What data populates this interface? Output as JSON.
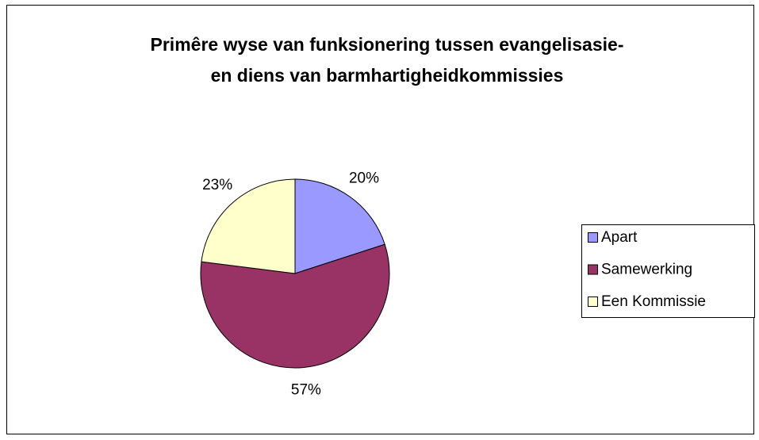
{
  "chart_data": {
    "type": "pie",
    "title": "Primêre wyse van funksionering tussen evangelisasie- en diens van barmhartigheidkommissies",
    "categories": [
      "Apart",
      "Samewerking",
      "Een Kommissie"
    ],
    "values": [
      20,
      57,
      23
    ],
    "value_labels": [
      "20%",
      "57%",
      "23%"
    ],
    "colors": [
      "#9999ff",
      "#993366",
      "#ffffcc"
    ],
    "legend": "right"
  }
}
